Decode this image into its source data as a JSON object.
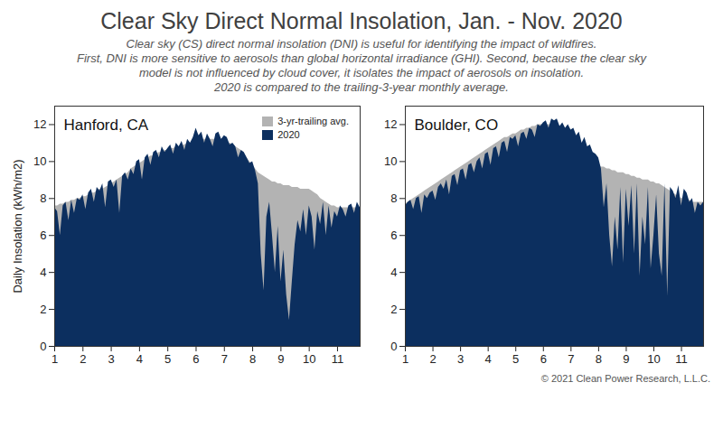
{
  "title": "Clear Sky Direct Normal Insolation, Jan. - Nov. 2020",
  "subtitle": [
    "Clear sky (CS) direct normal insolation (DNI) is useful for identifying the impact of wildfires.",
    "First, DNI is more sensitive to aerosols than global horizontal irradiance (GHI). Second, because the clear sky",
    "model is not influenced by cloud cover, it isolates the impact of aerosols on insolation.",
    "2020 is compared to the trailing-3-year monthly average."
  ],
  "credit": "© 2021 Clean Power Research, L.L.C.",
  "chart_data": [
    {
      "type": "area",
      "title": "Hanford, CA",
      "ylabel": "Daily Insolation (kWh/m2)",
      "legend": "upper right",
      "xlim": [
        1,
        11.8
      ],
      "xticks": [
        1,
        2,
        3,
        4,
        5,
        6,
        7,
        8,
        9,
        10,
        11
      ],
      "ylim": [
        0,
        13
      ],
      "yticks": [
        0,
        2,
        4,
        6,
        8,
        10,
        12
      ],
      "x": [
        1.0,
        1.1,
        1.2,
        1.3,
        1.4,
        1.5,
        1.6,
        1.7,
        1.8,
        1.9,
        2.0,
        2.1,
        2.2,
        2.3,
        2.4,
        2.5,
        2.6,
        2.7,
        2.8,
        2.9,
        3.0,
        3.1,
        3.2,
        3.3,
        3.4,
        3.5,
        3.6,
        3.7,
        3.8,
        3.9,
        4.0,
        4.1,
        4.2,
        4.3,
        4.4,
        4.5,
        4.6,
        4.7,
        4.8,
        4.9,
        5.0,
        5.1,
        5.2,
        5.3,
        5.4,
        5.5,
        5.6,
        5.7,
        5.8,
        5.9,
        6.0,
        6.1,
        6.2,
        6.3,
        6.4,
        6.5,
        6.6,
        6.7,
        6.8,
        6.9,
        7.0,
        7.1,
        7.2,
        7.3,
        7.4,
        7.5,
        7.6,
        7.7,
        7.8,
        7.9,
        8.0,
        8.1,
        8.2,
        8.3,
        8.4,
        8.5,
        8.6,
        8.7,
        8.8,
        8.9,
        9.0,
        9.1,
        9.2,
        9.3,
        9.4,
        9.5,
        9.6,
        9.7,
        9.8,
        9.9,
        10.0,
        10.1,
        10.2,
        10.3,
        10.4,
        10.5,
        10.6,
        10.7,
        10.8,
        10.9,
        11.0,
        11.1,
        11.2,
        11.3,
        11.4,
        11.5,
        11.6,
        11.7,
        11.8
      ],
      "series": [
        {
          "name": "3-yr-trailing avg.",
          "color": "#b3b3b3",
          "values": [
            7.6,
            7.6,
            7.7,
            7.7,
            7.8,
            7.8,
            7.9,
            7.9,
            8.0,
            8.0,
            8.1,
            8.1,
            8.2,
            8.3,
            8.3,
            8.4,
            8.5,
            8.5,
            8.6,
            8.7,
            8.8,
            8.9,
            9.0,
            9.1,
            9.2,
            9.3,
            9.4,
            9.6,
            9.7,
            9.8,
            9.9,
            10.0,
            10.1,
            10.2,
            10.3,
            10.3,
            10.4,
            10.5,
            10.5,
            10.6,
            10.6,
            10.7,
            10.7,
            10.8,
            10.8,
            10.9,
            10.9,
            11.0,
            11.0,
            11.1,
            11.1,
            11.1,
            11.2,
            11.2,
            11.2,
            11.2,
            11.2,
            11.2,
            11.1,
            11.1,
            11.1,
            11.0,
            11.0,
            10.9,
            10.8,
            10.7,
            10.6,
            10.4,
            10.2,
            10.0,
            9.8,
            9.6,
            9.4,
            9.3,
            9.2,
            9.1,
            9.0,
            8.9,
            8.9,
            8.8,
            8.8,
            8.7,
            8.7,
            8.7,
            8.6,
            8.6,
            8.6,
            8.5,
            8.5,
            8.5,
            8.5,
            8.4,
            8.3,
            8.2,
            8.0,
            7.9,
            7.8,
            7.7,
            7.6,
            7.6,
            7.5,
            7.5,
            7.5,
            7.5,
            7.5,
            7.5,
            7.5,
            7.5,
            7.5
          ]
        },
        {
          "name": "2020",
          "color": "#0c2f5f",
          "values": [
            7.5,
            7.3,
            6.0,
            7.6,
            7.8,
            6.8,
            7.9,
            7.2,
            8.0,
            7.9,
            8.2,
            7.4,
            8.3,
            8.5,
            7.8,
            8.6,
            8.4,
            8.8,
            7.5,
            8.9,
            9.0,
            8.6,
            9.0,
            7.2,
            9.2,
            9.4,
            9.0,
            9.6,
            9.3,
            10.0,
            10.1,
            9.0,
            10.2,
            10.4,
            9.8,
            10.5,
            10.6,
            10.2,
            10.8,
            10.5,
            10.7,
            10.9,
            10.4,
            11.0,
            10.8,
            11.1,
            10.6,
            11.2,
            11.0,
            11.3,
            11.8,
            11.4,
            11.6,
            11.0,
            11.5,
            11.2,
            10.8,
            11.5,
            11.6,
            11.2,
            11.4,
            11.3,
            10.9,
            11.0,
            10.8,
            10.2,
            10.6,
            10.5,
            10.2,
            9.9,
            10.0,
            9.5,
            8.8,
            5.0,
            3.0,
            7.0,
            7.8,
            6.0,
            4.0,
            6.5,
            3.5,
            5.2,
            2.8,
            1.4,
            3.5,
            5.5,
            6.8,
            6.2,
            7.4,
            6.0,
            7.6,
            7.0,
            5.2,
            7.3,
            6.6,
            7.8,
            6.0,
            7.6,
            6.4,
            7.3,
            7.0,
            7.6,
            7.4,
            7.0,
            7.6,
            7.7,
            7.2,
            7.8,
            7.5
          ]
        }
      ]
    },
    {
      "type": "area",
      "title": "Boulder, CO",
      "xlim": [
        1,
        11.8
      ],
      "xticks": [
        1,
        2,
        3,
        4,
        5,
        6,
        7,
        8,
        9,
        10,
        11
      ],
      "ylim": [
        0,
        13
      ],
      "yticks": [
        0,
        2,
        4,
        6,
        8,
        10,
        12
      ],
      "x": [
        1.0,
        1.1,
        1.2,
        1.3,
        1.4,
        1.5,
        1.6,
        1.7,
        1.8,
        1.9,
        2.0,
        2.1,
        2.2,
        2.3,
        2.4,
        2.5,
        2.6,
        2.7,
        2.8,
        2.9,
        3.0,
        3.1,
        3.2,
        3.3,
        3.4,
        3.5,
        3.6,
        3.7,
        3.8,
        3.9,
        4.0,
        4.1,
        4.2,
        4.3,
        4.4,
        4.5,
        4.6,
        4.7,
        4.8,
        4.9,
        5.0,
        5.1,
        5.2,
        5.3,
        5.4,
        5.5,
        5.6,
        5.7,
        5.8,
        5.9,
        6.0,
        6.1,
        6.2,
        6.3,
        6.4,
        6.5,
        6.6,
        6.7,
        6.8,
        6.9,
        7.0,
        7.1,
        7.2,
        7.3,
        7.4,
        7.5,
        7.6,
        7.7,
        7.8,
        7.9,
        8.0,
        8.1,
        8.2,
        8.3,
        8.4,
        8.5,
        8.6,
        8.7,
        8.8,
        8.9,
        9.0,
        9.1,
        9.2,
        9.3,
        9.4,
        9.5,
        9.6,
        9.7,
        9.8,
        9.9,
        10.0,
        10.1,
        10.2,
        10.3,
        10.4,
        10.5,
        10.6,
        10.7,
        10.8,
        10.9,
        11.0,
        11.1,
        11.2,
        11.3,
        11.4,
        11.5,
        11.6,
        11.7,
        11.8
      ],
      "series": [
        {
          "name": "3-yr-trailing avg.",
          "color": "#b3b3b3",
          "values": [
            7.7,
            7.8,
            7.9,
            8.0,
            8.1,
            8.2,
            8.3,
            8.4,
            8.5,
            8.6,
            8.7,
            8.8,
            8.9,
            9.0,
            9.1,
            9.2,
            9.3,
            9.4,
            9.5,
            9.6,
            9.7,
            9.8,
            9.9,
            10.0,
            10.1,
            10.2,
            10.3,
            10.4,
            10.5,
            10.6,
            10.7,
            10.8,
            10.9,
            11.0,
            11.1,
            11.2,
            11.3,
            11.3,
            11.4,
            11.5,
            11.5,
            11.6,
            11.7,
            11.7,
            11.8,
            11.8,
            11.9,
            11.9,
            12.0,
            12.0,
            12.0,
            12.0,
            12.0,
            12.0,
            12.0,
            11.9,
            11.9,
            11.8,
            11.7,
            11.6,
            11.5,
            11.4,
            11.2,
            11.0,
            10.8,
            10.6,
            10.4,
            10.2,
            10.0,
            9.9,
            9.8,
            9.7,
            9.7,
            9.6,
            9.6,
            9.5,
            9.5,
            9.4,
            9.4,
            9.4,
            9.3,
            9.3,
            9.2,
            9.2,
            9.1,
            9.1,
            9.0,
            9.0,
            9.0,
            8.9,
            8.9,
            8.8,
            8.8,
            8.7,
            8.6,
            8.5,
            8.4,
            8.3,
            8.2,
            8.1,
            8.0,
            8.0,
            7.9,
            7.9,
            7.8,
            7.8,
            7.8,
            7.8,
            7.8
          ]
        },
        {
          "name": "2020",
          "color": "#0c2f5f",
          "values": [
            7.6,
            7.8,
            7.9,
            7.4,
            8.0,
            8.1,
            7.2,
            8.2,
            8.0,
            8.3,
            8.4,
            7.9,
            8.6,
            8.8,
            8.5,
            9.0,
            8.2,
            9.2,
            9.3,
            8.7,
            9.5,
            9.6,
            9.0,
            9.8,
            9.9,
            9.4,
            10.0,
            10.2,
            9.6,
            10.4,
            10.5,
            9.8,
            10.7,
            10.8,
            10.2,
            11.0,
            11.1,
            10.5,
            11.3,
            11.2,
            11.4,
            10.8,
            11.5,
            11.6,
            11.2,
            11.8,
            11.7,
            11.3,
            12.0,
            11.9,
            12.1,
            12.2,
            11.8,
            12.3,
            12.2,
            12.3,
            11.9,
            12.1,
            11.8,
            12.0,
            11.7,
            11.8,
            11.4,
            11.6,
            11.0,
            11.3,
            10.8,
            10.9,
            10.5,
            10.4,
            10.2,
            9.6,
            7.5,
            8.8,
            6.0,
            4.3,
            7.0,
            5.2,
            8.6,
            4.5,
            8.5,
            6.5,
            8.7,
            5.0,
            8.8,
            3.8,
            7.0,
            5.5,
            8.6,
            4.2,
            6.0,
            8.2,
            5.0,
            3.8,
            8.8,
            2.7,
            8.6,
            8.4,
            8.0,
            8.7,
            7.6,
            8.5,
            8.3,
            7.8,
            8.0,
            7.2,
            7.8,
            7.6,
            7.8
          ]
        }
      ]
    }
  ]
}
